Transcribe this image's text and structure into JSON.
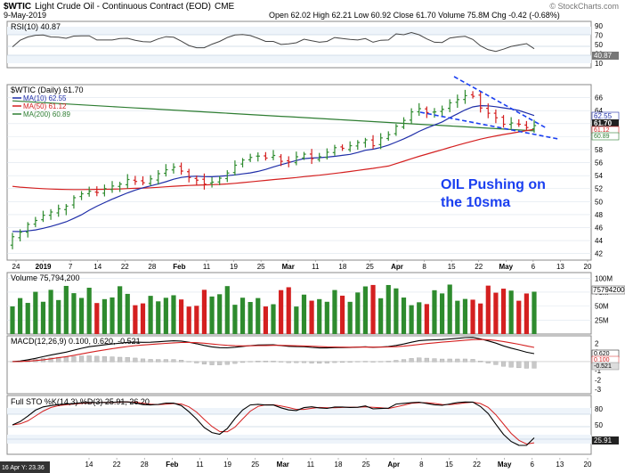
{
  "header": {
    "symbol": "$WTIC",
    "name": "Light Crude Oil - Continuous Contract (EOD)",
    "exchange": "CME",
    "date": "9-May-2019",
    "ohlc": "Open 62.02  High 62.21  Low 60.92  Close 61.70  Volume 75.8M  Chg -0.42 (-0.68%)",
    "credit": "© StockCharts.com"
  },
  "rsi": {
    "label": "RSI(10) 40.87",
    "ticks": [
      "90",
      "70",
      "50",
      "30",
      "10"
    ],
    "last_value": "40.87",
    "color": "#555555"
  },
  "price": {
    "label": "$WTIC (Daily) 61.70",
    "legend": [
      {
        "text": "MA(10) 62.55",
        "color": "#1f2ea8"
      },
      {
        "text": "MA(50) 61.12",
        "color": "#d42020"
      },
      {
        "text": "MA(200) 60.89",
        "color": "#2e7d32"
      }
    ],
    "ticks": [
      "66",
      "64",
      "62",
      "60",
      "58",
      "56",
      "54",
      "52",
      "50",
      "48",
      "46",
      "44",
      "42"
    ],
    "right_values": [
      "62.55",
      "61.70",
      "61.12",
      "60.89"
    ],
    "annotation_line1": "OIL Pushing on",
    "annotation_line2": "the 10sma",
    "annotation_color": "#1a3ff0"
  },
  "volume": {
    "label": "Volume 75,794,200",
    "ticks": [
      "100M",
      "75M",
      "50M",
      "25M"
    ],
    "last_value": "75794200"
  },
  "macd": {
    "label": "MACD(12,26,9) 0.100, 0.620, -0.521",
    "ticks": [
      "2",
      "1",
      "-1",
      "-2",
      "-3"
    ],
    "right_values": [
      "0.620",
      "0.100",
      "-0.521"
    ]
  },
  "sto": {
    "label": "Full STO %K(14,3) %D(3) 25.91, 26.20",
    "ticks": [
      "80",
      "50",
      "20"
    ],
    "last_value": "25.91"
  },
  "xaxis_top": [
    "24",
    "2019",
    "7",
    "14",
    "22",
    "28",
    "Feb",
    "11",
    "19",
    "25",
    "Mar",
    "11",
    "18",
    "25",
    "Apr",
    "8",
    "15",
    "22",
    "May",
    "6",
    "13",
    "20"
  ],
  "xaxis_bottom": [
    "14",
    "22",
    "28",
    "Feb",
    "11",
    "19",
    "25",
    "Mar",
    "11",
    "18",
    "25",
    "Apr",
    "8",
    "15",
    "22",
    "May",
    "6",
    "13",
    "20"
  ],
  "footer_note": "16 Apr Y: 23.36",
  "chart_data": {
    "type": "line",
    "title": "$WTIC Light Crude Oil - Continuous Contract (EOD)",
    "ylim_price": [
      41,
      68
    ],
    "price_close": [
      44.6,
      45.3,
      46.5,
      47.1,
      47.9,
      48.4,
      48.9,
      49.3,
      50.6,
      51.2,
      51.6,
      51.4,
      52.0,
      52.4,
      52.7,
      53.4,
      53.1,
      52.9,
      53.5,
      54.3,
      54.9,
      55.3,
      54.7,
      53.7,
      53.3,
      52.7,
      53.0,
      53.6,
      54.4,
      55.6,
      56.4,
      56.8,
      57.0,
      56.7,
      57.1,
      56.2,
      56.1,
      56.9,
      57.3,
      56.6,
      56.9,
      57.6,
      58.3,
      58.2,
      58.6,
      59.1,
      59.5,
      58.6,
      59.8,
      60.3,
      61.6,
      62.5,
      63.8,
      64.3,
      63.7,
      63.8,
      64.2,
      65.2,
      65.7,
      66.3,
      66.2,
      64.4,
      63.6,
      62.9,
      61.9,
      62.1,
      61.9,
      61.4,
      61.7
    ],
    "ma10_start": 45.5,
    "ma50_end": 61.12,
    "ma200_end": 60.89,
    "volume_scale_max": 110
  }
}
